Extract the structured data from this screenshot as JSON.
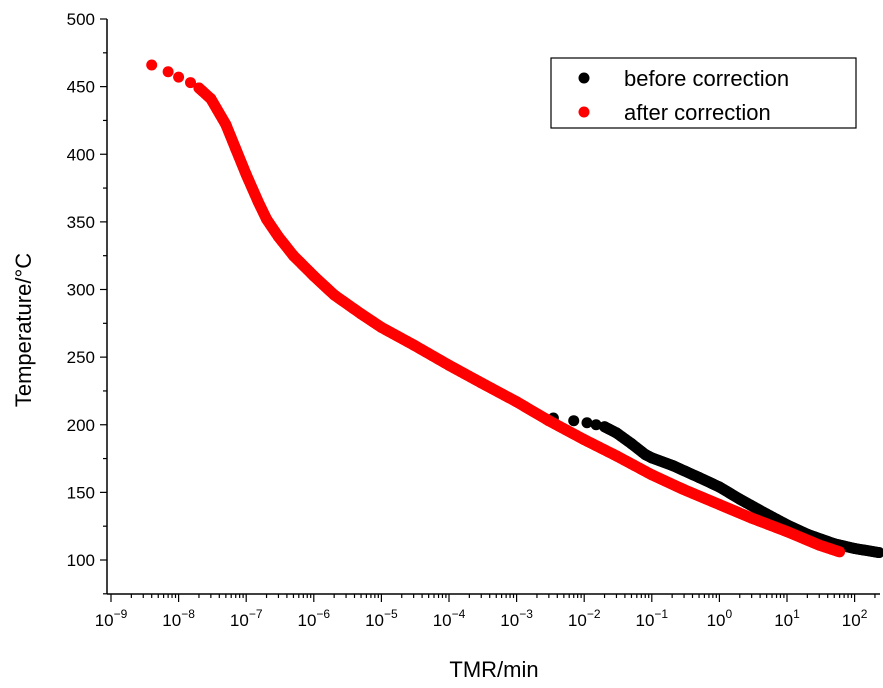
{
  "chart_data": {
    "type": "scatter",
    "xlabel": "TMR/min",
    "ylabel": "Temperature/°C",
    "x_scale": "log",
    "xlim": [
      1e-09,
      300
    ],
    "ylim": [
      80,
      500
    ],
    "x_tick_exponents": [
      -9,
      -8,
      -7,
      -6,
      -5,
      -4,
      -3,
      -2,
      -1,
      0,
      1,
      2
    ],
    "y_ticks": [
      100,
      150,
      200,
      250,
      300,
      350,
      400,
      450,
      500
    ],
    "y_tick_labels": [
      "100",
      "150",
      "200",
      "250",
      "300",
      "350",
      "400",
      "450",
      "500"
    ],
    "grid": false,
    "legend_position": "top-right",
    "series": [
      {
        "name": "before correction",
        "color": "#000000",
        "points": [
          [
            0.0035,
            205
          ],
          [
            0.007,
            203
          ],
          [
            0.011,
            201.5
          ],
          [
            0.015,
            200
          ],
          [
            0.02,
            198.5
          ],
          [
            0.03,
            194
          ],
          [
            0.05,
            186
          ],
          [
            0.08,
            178
          ],
          [
            0.1,
            175.5
          ],
          [
            0.2,
            170
          ],
          [
            0.5,
            161
          ],
          [
            1,
            154
          ],
          [
            2,
            145
          ],
          [
            5,
            134
          ],
          [
            10,
            126
          ],
          [
            20,
            119
          ],
          [
            50,
            112
          ],
          [
            100,
            108.5
          ],
          [
            230,
            105.5
          ]
        ]
      },
      {
        "name": "after correction",
        "color": "#ff0000",
        "points": [
          [
            4e-09,
            466
          ],
          [
            7e-09,
            461
          ],
          [
            1e-08,
            457
          ],
          [
            1.5e-08,
            453
          ],
          [
            2e-08,
            449
          ],
          [
            3e-08,
            441
          ],
          [
            5e-08,
            422
          ],
          [
            7e-08,
            404
          ],
          [
            1e-07,
            385
          ],
          [
            1.5e-07,
            365
          ],
          [
            2e-07,
            352
          ],
          [
            3e-07,
            339
          ],
          [
            5e-07,
            325
          ],
          [
            1e-06,
            310
          ],
          [
            2e-06,
            296
          ],
          [
            5e-06,
            282
          ],
          [
            1e-05,
            272
          ],
          [
            3e-05,
            259
          ],
          [
            0.0001,
            244
          ],
          [
            0.0003,
            231
          ],
          [
            0.001,
            217
          ],
          [
            0.003,
            203
          ],
          [
            0.01,
            189
          ],
          [
            0.03,
            177
          ],
          [
            0.1,
            163
          ],
          [
            0.3,
            152
          ],
          [
            1,
            141
          ],
          [
            3,
            131
          ],
          [
            10,
            121
          ],
          [
            30,
            111
          ],
          [
            60,
            106
          ]
        ]
      }
    ]
  }
}
